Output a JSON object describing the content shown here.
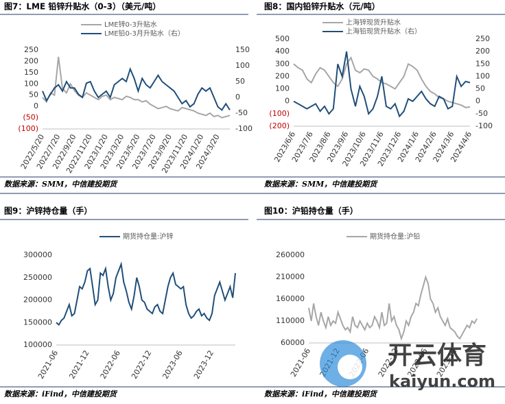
{
  "chart_data": [
    {
      "type": "line",
      "title": "图7：LME 铅锌升贴水（0-3）（美元/吨）",
      "source": "数据来源：SMM，中信建投期货",
      "categories": [
        "2022/5/20",
        null,
        null,
        null,
        "2022/7/20",
        null,
        null,
        null,
        "2022/9/20",
        null,
        null,
        null,
        "2022/11/20",
        null,
        null,
        null,
        "2023/1/20",
        null,
        null,
        null,
        "2023/3/20",
        null,
        null,
        null,
        "2023/5/20",
        null,
        null,
        null,
        "2023/7/20",
        null,
        null,
        null,
        "2023/9/20",
        null,
        null,
        null,
        "2023/11/20",
        null,
        null,
        null,
        "2024/1/20",
        null,
        null,
        null,
        "2024/3/20",
        null,
        null,
        null
      ],
      "series": [
        {
          "name": "LME锌0-3升贴水",
          "color": "#a6a6a6",
          "values": [
            40,
            20,
            60,
            50,
            220,
            80,
            60,
            100,
            70,
            50,
            40,
            60,
            50,
            40,
            30,
            45,
            50,
            30,
            40,
            35,
            30,
            45,
            40,
            30,
            30,
            20,
            25,
            10,
            0,
            -10,
            -5,
            0,
            -10,
            -15,
            -20,
            -5,
            -10,
            -15,
            -20,
            -30,
            -35,
            -40,
            -30,
            -45,
            -40,
            -50,
            -45,
            -40
          ]
        },
        {
          "name": "LME铅0-3月升贴水（右）",
          "color": "#1f4e79",
          "axis": "y2",
          "values": [
            20,
            -10,
            10,
            30,
            40,
            20,
            50,
            30,
            30,
            10,
            0,
            45,
            50,
            20,
            0,
            10,
            20,
            0,
            40,
            50,
            60,
            50,
            90,
            60,
            20,
            60,
            40,
            30,
            50,
            70,
            50,
            40,
            30,
            20,
            0,
            -20,
            -10,
            -30,
            -20,
            10,
            30,
            20,
            30,
            0,
            -30,
            -40,
            -20,
            -40
          ]
        }
      ],
      "ylim": [
        -100,
        250
      ],
      "yticks": [
        {
          "value": -100,
          "label": "(100)"
        },
        {
          "value": -50,
          "label": "(50)"
        },
        0,
        50,
        100,
        150,
        200,
        250
      ],
      "y2lim": [
        -100,
        150
      ],
      "y2ticks": [
        -100,
        -50,
        0,
        50,
        100,
        150
      ],
      "negative_tick_color": "#c00000"
    },
    {
      "type": "line",
      "title": "图8：国内铅锌升贴水（元/吨）",
      "source": "数据来源：SMM，中信建投期货",
      "categories": [
        "2023/6/6",
        null,
        null,
        null,
        "2023/7/6",
        null,
        null,
        null,
        "2023/8/6",
        null,
        null,
        null,
        "2023/9/6",
        null,
        null,
        null,
        "2023/10/6",
        null,
        null,
        null,
        "2023/11/6",
        null,
        null,
        null,
        "2023/12/6",
        null,
        null,
        null,
        "2024/1/6",
        null,
        null,
        null,
        "2024/2/6",
        null,
        null,
        null,
        "2024/3/6",
        null,
        null,
        null,
        "2024/4/6"
      ],
      "series": [
        {
          "name": "上海锌现货升贴水",
          "color": "#a6a6a6",
          "values": [
            300,
            270,
            250,
            180,
            150,
            220,
            270,
            250,
            200,
            150,
            120,
            180,
            300,
            350,
            250,
            230,
            260,
            250,
            200,
            180,
            150,
            140,
            120,
            100,
            150,
            200,
            300,
            280,
            250,
            180,
            120,
            80,
            60,
            30,
            20,
            0,
            -10,
            -20,
            -30,
            -50,
            -45
          ]
        },
        {
          "name": "上海铅现货升贴水（右）",
          "color": "#1f4e79",
          "axis": "y2",
          "values": [
            0,
            -10,
            -20,
            -30,
            -20,
            -10,
            -40,
            -20,
            -50,
            -30,
            150,
            100,
            200,
            50,
            -20,
            60,
            20,
            -50,
            -30,
            20,
            100,
            -20,
            -30,
            -10,
            -60,
            -40,
            10,
            0,
            20,
            40,
            10,
            -10,
            -20,
            20,
            10,
            -30,
            -20,
            100,
            60,
            80,
            75
          ]
        }
      ],
      "ylim": [
        -200,
        500
      ],
      "yticks": [
        {
          "value": -200,
          "label": "(200)"
        },
        {
          "value": -100,
          "label": "(100)"
        },
        0,
        100,
        200,
        300,
        400,
        500
      ],
      "y2lim": [
        -100,
        250
      ],
      "y2ticks": [
        -100,
        -50,
        0,
        50,
        100,
        150,
        200,
        250
      ],
      "negative_tick_color": "#c00000"
    },
    {
      "type": "line",
      "title": "图9：沪锌持仓量（手）",
      "source": "数据来源：iFind，中信建投期货",
      "categories": [
        "2021-06",
        null,
        null,
        null,
        null,
        null,
        null,
        null,
        null,
        null,
        null,
        null,
        "2021-12",
        null,
        null,
        null,
        null,
        null,
        null,
        null,
        null,
        null,
        null,
        null,
        "2022-06",
        null,
        null,
        null,
        null,
        null,
        null,
        null,
        null,
        null,
        null,
        null,
        "2022-12",
        null,
        null,
        null,
        null,
        null,
        null,
        null,
        null,
        null,
        null,
        null,
        "2023-06",
        null,
        null,
        null,
        null,
        null,
        null,
        null,
        null,
        null,
        null,
        null,
        "2023-12",
        null,
        null,
        null,
        null,
        null,
        null,
        null,
        null,
        null
      ],
      "series": [
        {
          "name": "期货持仓量:沪锌",
          "color": "#1f4e79",
          "values": [
            150000,
            145000,
            155000,
            160000,
            175000,
            190000,
            165000,
            170000,
            200000,
            230000,
            225000,
            240000,
            265000,
            270000,
            230000,
            190000,
            200000,
            260000,
            255000,
            270000,
            230000,
            200000,
            215000,
            250000,
            265000,
            280000,
            240000,
            220000,
            195000,
            180000,
            210000,
            250000,
            230000,
            200000,
            195000,
            180000,
            175000,
            170000,
            185000,
            190000,
            175000,
            170000,
            200000,
            230000,
            250000,
            260000,
            235000,
            230000,
            225000,
            230000,
            190000,
            170000,
            160000,
            165000,
            175000,
            180000,
            165000,
            170000,
            160000,
            155000,
            170000,
            210000,
            225000,
            240000,
            220000,
            200000,
            215000,
            230000,
            205000,
            260000
          ]
        }
      ],
      "ylim": [
        100000,
        300000
      ],
      "yticks": [
        100000,
        150000,
        200000,
        250000,
        300000
      ]
    },
    {
      "type": "line",
      "title": "图10：沪铅持仓量（手）",
      "source": "数据来源：iFind，中信建投期货",
      "categories": [
        "2021-06",
        null,
        null,
        null,
        null,
        null,
        null,
        null,
        null,
        null,
        null,
        null,
        "2021-12",
        null,
        null,
        null,
        null,
        null,
        null,
        null,
        null,
        null,
        null,
        null,
        "2022-06",
        null,
        null,
        null,
        null,
        null,
        null,
        null,
        null,
        null,
        null,
        null,
        "2022-12",
        null,
        null,
        null,
        null,
        null,
        null,
        null,
        null,
        null,
        null,
        null,
        "2023-06",
        null,
        null,
        null,
        null,
        null,
        null,
        null,
        null,
        null,
        null,
        null,
        "2023-12",
        null,
        null,
        null,
        null,
        null,
        null,
        null,
        null,
        null
      ],
      "series": [
        {
          "name": "期货持仓量:沪铅",
          "color": "#a6a6a6",
          "values": [
            140000,
            110000,
            150000,
            120000,
            100000,
            130000,
            110000,
            95000,
            120000,
            100000,
            110000,
            105000,
            130000,
            115000,
            100000,
            90000,
            95000,
            85000,
            120000,
            100000,
            95000,
            110000,
            100000,
            90000,
            105000,
            95000,
            100000,
            120000,
            110000,
            95000,
            130000,
            100000,
            105000,
            150000,
            110000,
            120000,
            100000,
            90000,
            70000,
            85000,
            110000,
            100000,
            120000,
            130000,
            150000,
            145000,
            170000,
            190000,
            210000,
            195000,
            160000,
            150000,
            130000,
            140000,
            120000,
            110000,
            100000,
            115000,
            95000,
            90000,
            85000,
            75000,
            70000,
            80000,
            90000,
            100000,
            95000,
            110000,
            105000,
            115000
          ]
        }
      ],
      "ylim": [
        60000,
        260000
      ],
      "yticks": [
        60000,
        110000,
        160000,
        210000,
        260000
      ]
    }
  ],
  "watermark": {
    "title": "开云体育",
    "subtitle": "kaiyun.com"
  }
}
